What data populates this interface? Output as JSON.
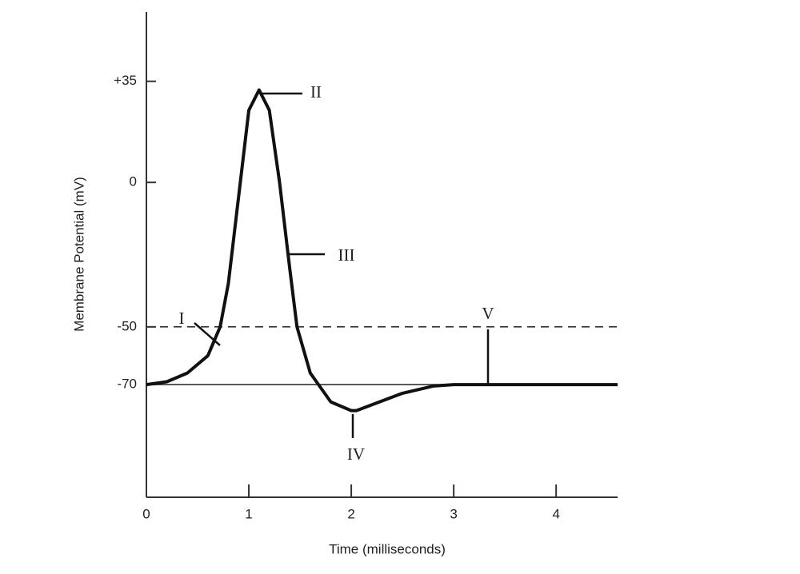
{
  "chart_data": {
    "type": "line",
    "xlabel": "Time (milliseconds)",
    "ylabel": "Membrane Potential (mV)",
    "x": [
      0,
      0.2,
      0.4,
      0.6,
      0.72,
      0.8,
      0.9,
      1.0,
      1.1,
      1.2,
      1.3,
      1.4,
      1.47,
      1.6,
      1.8,
      2.0,
      2.05,
      2.2,
      2.5,
      2.8,
      3.0,
      3.3,
      3.6,
      4.0,
      4.6
    ],
    "series": [
      {
        "color": "#111111",
        "values": [
          -70,
          -69,
          -66,
          -60,
          -50,
          -35,
          -5,
          25,
          32,
          25,
          0,
          -30,
          -50,
          -66,
          -76,
          -79,
          -79,
          -77,
          -73,
          -70.5,
          -70,
          -70,
          -70,
          -70,
          -70
        ]
      }
    ],
    "xlim": [
      0,
      4.6
    ],
    "xticks": [
      0,
      1,
      2,
      3,
      4
    ],
    "ylim": [
      -109,
      59
    ],
    "yticks": [
      {
        "value": 35,
        "label": "+35"
      },
      0,
      -50,
      -70
    ],
    "reference_lines": [
      {
        "value": -50,
        "style": "dashed"
      },
      {
        "value": -70,
        "style": "solid"
      }
    ],
    "annotations": [
      "I",
      "II",
      "III",
      "IV",
      "V"
    ]
  }
}
